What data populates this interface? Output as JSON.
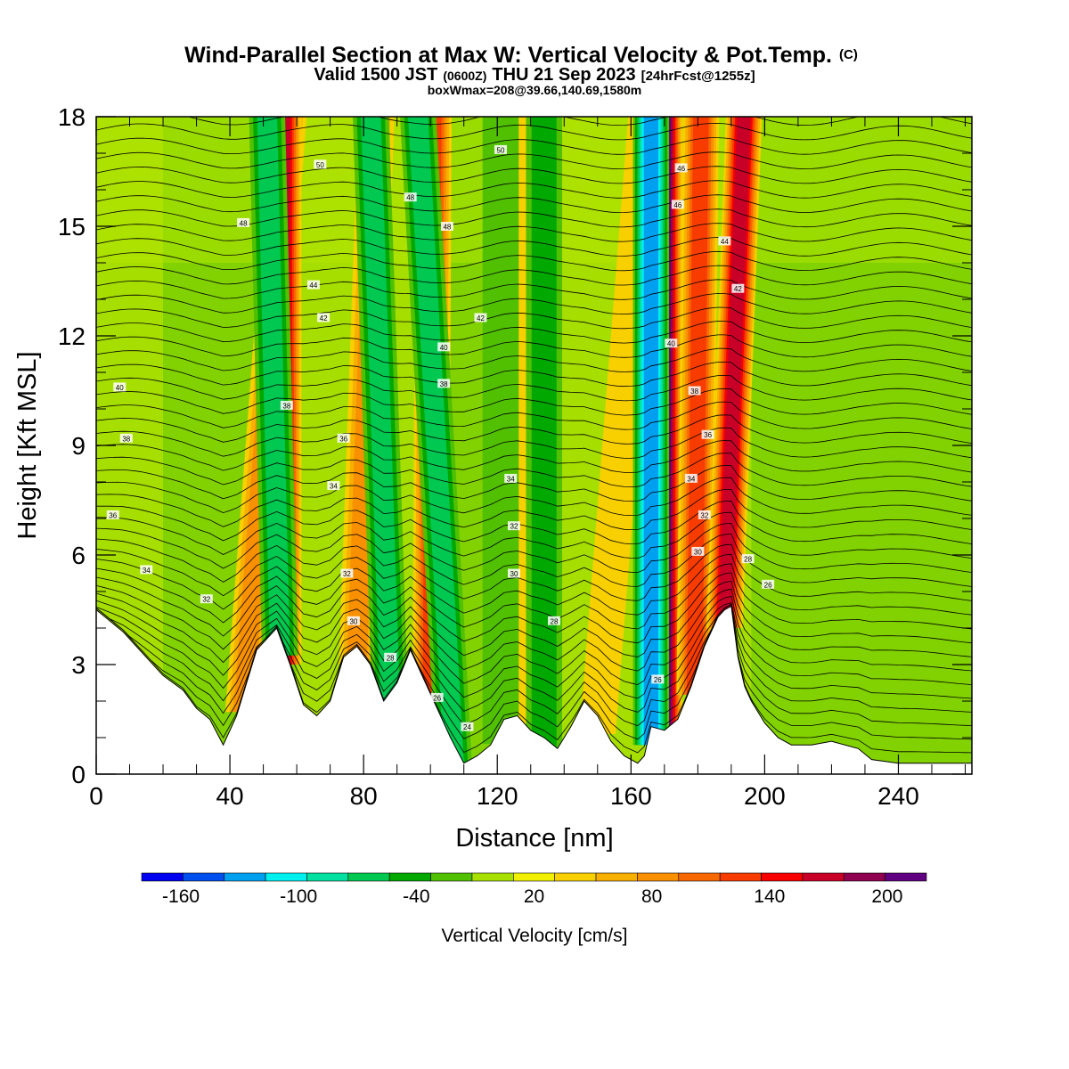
{
  "header": {
    "title": "Wind-Parallel Section at Max W: Vertical Velocity & Pot.Temp.",
    "title_mark": "(C)",
    "valid_prefix": "Valid 1500 JST",
    "valid_zulu": "(0600Z)",
    "valid_date": "THU 21 Sep 2023",
    "valid_fcst": "[24hrFcst@1255z]",
    "boxwmax": "boxWmax=208@39.66,140.69,1580m"
  },
  "chart_data": {
    "type": "heatmap",
    "xlabel": "Distance [nm]",
    "ylabel": "Height [Kft MSL]",
    "xlim": [
      0,
      262
    ],
    "ylim": [
      0,
      18
    ],
    "x_ticks": [
      "0",
      "40",
      "80",
      "120",
      "160",
      "200",
      "240"
    ],
    "y_ticks": [
      "0",
      "3",
      "6",
      "9",
      "12",
      "15",
      "18"
    ],
    "x_tick_values": [
      0,
      40,
      80,
      120,
      160,
      200,
      240
    ],
    "y_tick_values": [
      0,
      3,
      6,
      9,
      12,
      15,
      18
    ],
    "terrain": {
      "x": [
        0,
        4,
        8,
        12,
        16,
        20,
        26,
        30,
        34,
        38,
        42,
        48,
        54,
        58,
        62,
        66,
        70,
        74,
        78,
        82,
        86,
        90,
        94,
        98,
        102,
        106,
        110,
        114,
        118,
        122,
        126,
        130,
        134,
        138,
        142,
        146,
        150,
        154,
        158,
        162,
        164,
        166,
        170,
        174,
        178,
        182,
        186,
        188,
        190,
        192,
        194,
        196,
        200,
        204,
        208,
        214,
        220,
        228,
        232,
        240,
        250,
        262
      ],
      "height_kft": [
        4.5,
        4.2,
        3.9,
        3.5,
        3.1,
        2.7,
        2.3,
        1.8,
        1.5,
        0.8,
        1.6,
        3.4,
        4.0,
        3.0,
        1.9,
        1.6,
        2.0,
        3.2,
        3.5,
        3.0,
        2.0,
        2.5,
        3.4,
        2.6,
        1.8,
        1.0,
        0.3,
        0.5,
        0.8,
        1.5,
        1.6,
        1.2,
        1.0,
        0.7,
        1.3,
        2.0,
        1.6,
        0.9,
        0.5,
        0.3,
        0.5,
        1.3,
        1.2,
        1.5,
        2.4,
        3.5,
        4.3,
        4.5,
        4.6,
        3.2,
        2.4,
        2.0,
        1.4,
        1.0,
        0.8,
        0.8,
        0.9,
        0.7,
        0.4,
        0.3,
        0.3,
        0.3
      ]
    },
    "updraft_bands": [
      {
        "x_bottom": 44,
        "x_top": 58,
        "peak_cm_s": 80
      },
      {
        "x_bottom": 56,
        "x_top": 56,
        "peak_cm_s": 160
      },
      {
        "x_bottom": 78,
        "x_top": 84,
        "peak_cm_s": 70
      },
      {
        "x_bottom": 100,
        "x_top": 101,
        "peak_cm_s": 110
      },
      {
        "x_bottom": 130,
        "x_top": 130,
        "peak_cm_s": 40
      },
      {
        "x_bottom": 170,
        "x_top": 170,
        "peak_cm_s": 208
      },
      {
        "x_bottom": 179,
        "x_top": 181,
        "peak_cm_s": 110
      },
      {
        "x_bottom": 188,
        "x_top": 194,
        "peak_cm_s": 150
      },
      {
        "x_bottom": 150,
        "x_top": 165,
        "peak_cm_s": 40
      }
    ],
    "downdraft_bands": [
      {
        "x_bottom": 55,
        "x_top": 51,
        "peak_cm_s": -80
      },
      {
        "x_bottom": 88,
        "x_top": 82,
        "peak_cm_s": -70
      },
      {
        "x_bottom": 107,
        "x_top": 96,
        "peak_cm_s": -70
      },
      {
        "x_bottom": 134,
        "x_top": 134,
        "peak_cm_s": -50
      },
      {
        "x_bottom": 166,
        "x_top": 166,
        "peak_cm_s": -130
      },
      {
        "x_bottom": 121,
        "x_top": 121,
        "peak_cm_s": -35
      }
    ],
    "theta_contours": {
      "levels_C": [
        24,
        26,
        28,
        30,
        32,
        34,
        36,
        38,
        40,
        42,
        44,
        46,
        48,
        50
      ],
      "labels": [
        {
          "text": "50",
          "x": 67,
          "y": 16.7
        },
        {
          "text": "50",
          "x": 121,
          "y": 17.1
        },
        {
          "text": "48",
          "x": 44,
          "y": 15.1
        },
        {
          "text": "48",
          "x": 94,
          "y": 15.8
        },
        {
          "text": "48",
          "x": 105,
          "y": 15.0
        },
        {
          "text": "46",
          "x": 175,
          "y": 16.6
        },
        {
          "text": "46",
          "x": 174,
          "y": 15.6
        },
        {
          "text": "44",
          "x": 65,
          "y": 13.4
        },
        {
          "text": "44",
          "x": 188,
          "y": 14.6
        },
        {
          "text": "42",
          "x": 68,
          "y": 12.5
        },
        {
          "text": "42",
          "x": 115,
          "y": 12.5
        },
        {
          "text": "42",
          "x": 192,
          "y": 13.3
        },
        {
          "text": "40",
          "x": 7,
          "y": 10.6
        },
        {
          "text": "40",
          "x": 104,
          "y": 11.7
        },
        {
          "text": "40",
          "x": 172,
          "y": 11.8
        },
        {
          "text": "38",
          "x": 9,
          "y": 9.2
        },
        {
          "text": "38",
          "x": 57,
          "y": 10.1
        },
        {
          "text": "38",
          "x": 104,
          "y": 10.7
        },
        {
          "text": "38",
          "x": 179,
          "y": 10.5
        },
        {
          "text": "36",
          "x": 5,
          "y": 7.1
        },
        {
          "text": "36",
          "x": 74,
          "y": 9.2
        },
        {
          "text": "36",
          "x": 183,
          "y": 9.3
        },
        {
          "text": "34",
          "x": 15,
          "y": 5.6
        },
        {
          "text": "34",
          "x": 71,
          "y": 7.9
        },
        {
          "text": "34",
          "x": 124,
          "y": 8.1
        },
        {
          "text": "34",
          "x": 178,
          "y": 8.1
        },
        {
          "text": "32",
          "x": 33,
          "y": 4.8
        },
        {
          "text": "32",
          "x": 75,
          "y": 5.5
        },
        {
          "text": "32",
          "x": 125,
          "y": 6.8
        },
        {
          "text": "32",
          "x": 182,
          "y": 7.1
        },
        {
          "text": "30",
          "x": 77,
          "y": 4.2
        },
        {
          "text": "30",
          "x": 125,
          "y": 5.5
        },
        {
          "text": "30",
          "x": 180,
          "y": 6.1
        },
        {
          "text": "28",
          "x": 88,
          "y": 3.2
        },
        {
          "text": "28",
          "x": 137,
          "y": 4.2
        },
        {
          "text": "28",
          "x": 195,
          "y": 5.9
        },
        {
          "text": "26",
          "x": 102,
          "y": 2.1
        },
        {
          "text": "26",
          "x": 168,
          "y": 2.6
        },
        {
          "text": "26",
          "x": 201,
          "y": 5.2
        },
        {
          "text": "24",
          "x": 111,
          "y": 1.3
        }
      ]
    }
  },
  "colorbar": {
    "label": "Vertical Velocity [cm/s]",
    "bounds": [
      -180,
      220
    ],
    "step": 20,
    "colors": [
      "#0000f0",
      "#0050f0",
      "#00a0f0",
      "#00f0f0",
      "#00e0a0",
      "#00c850",
      "#00a800",
      "#50c000",
      "#a8e000",
      "#f0f000",
      "#f8d000",
      "#f8b000",
      "#f89000",
      "#f86800",
      "#f83c00",
      "#f80000",
      "#c80028",
      "#900050",
      "#600080"
    ],
    "tick_labels": [
      "-160",
      "-100",
      "-40",
      "20",
      "80",
      "140",
      "200"
    ],
    "tick_values": [
      -160,
      -100,
      -40,
      20,
      80,
      140,
      200
    ]
  }
}
